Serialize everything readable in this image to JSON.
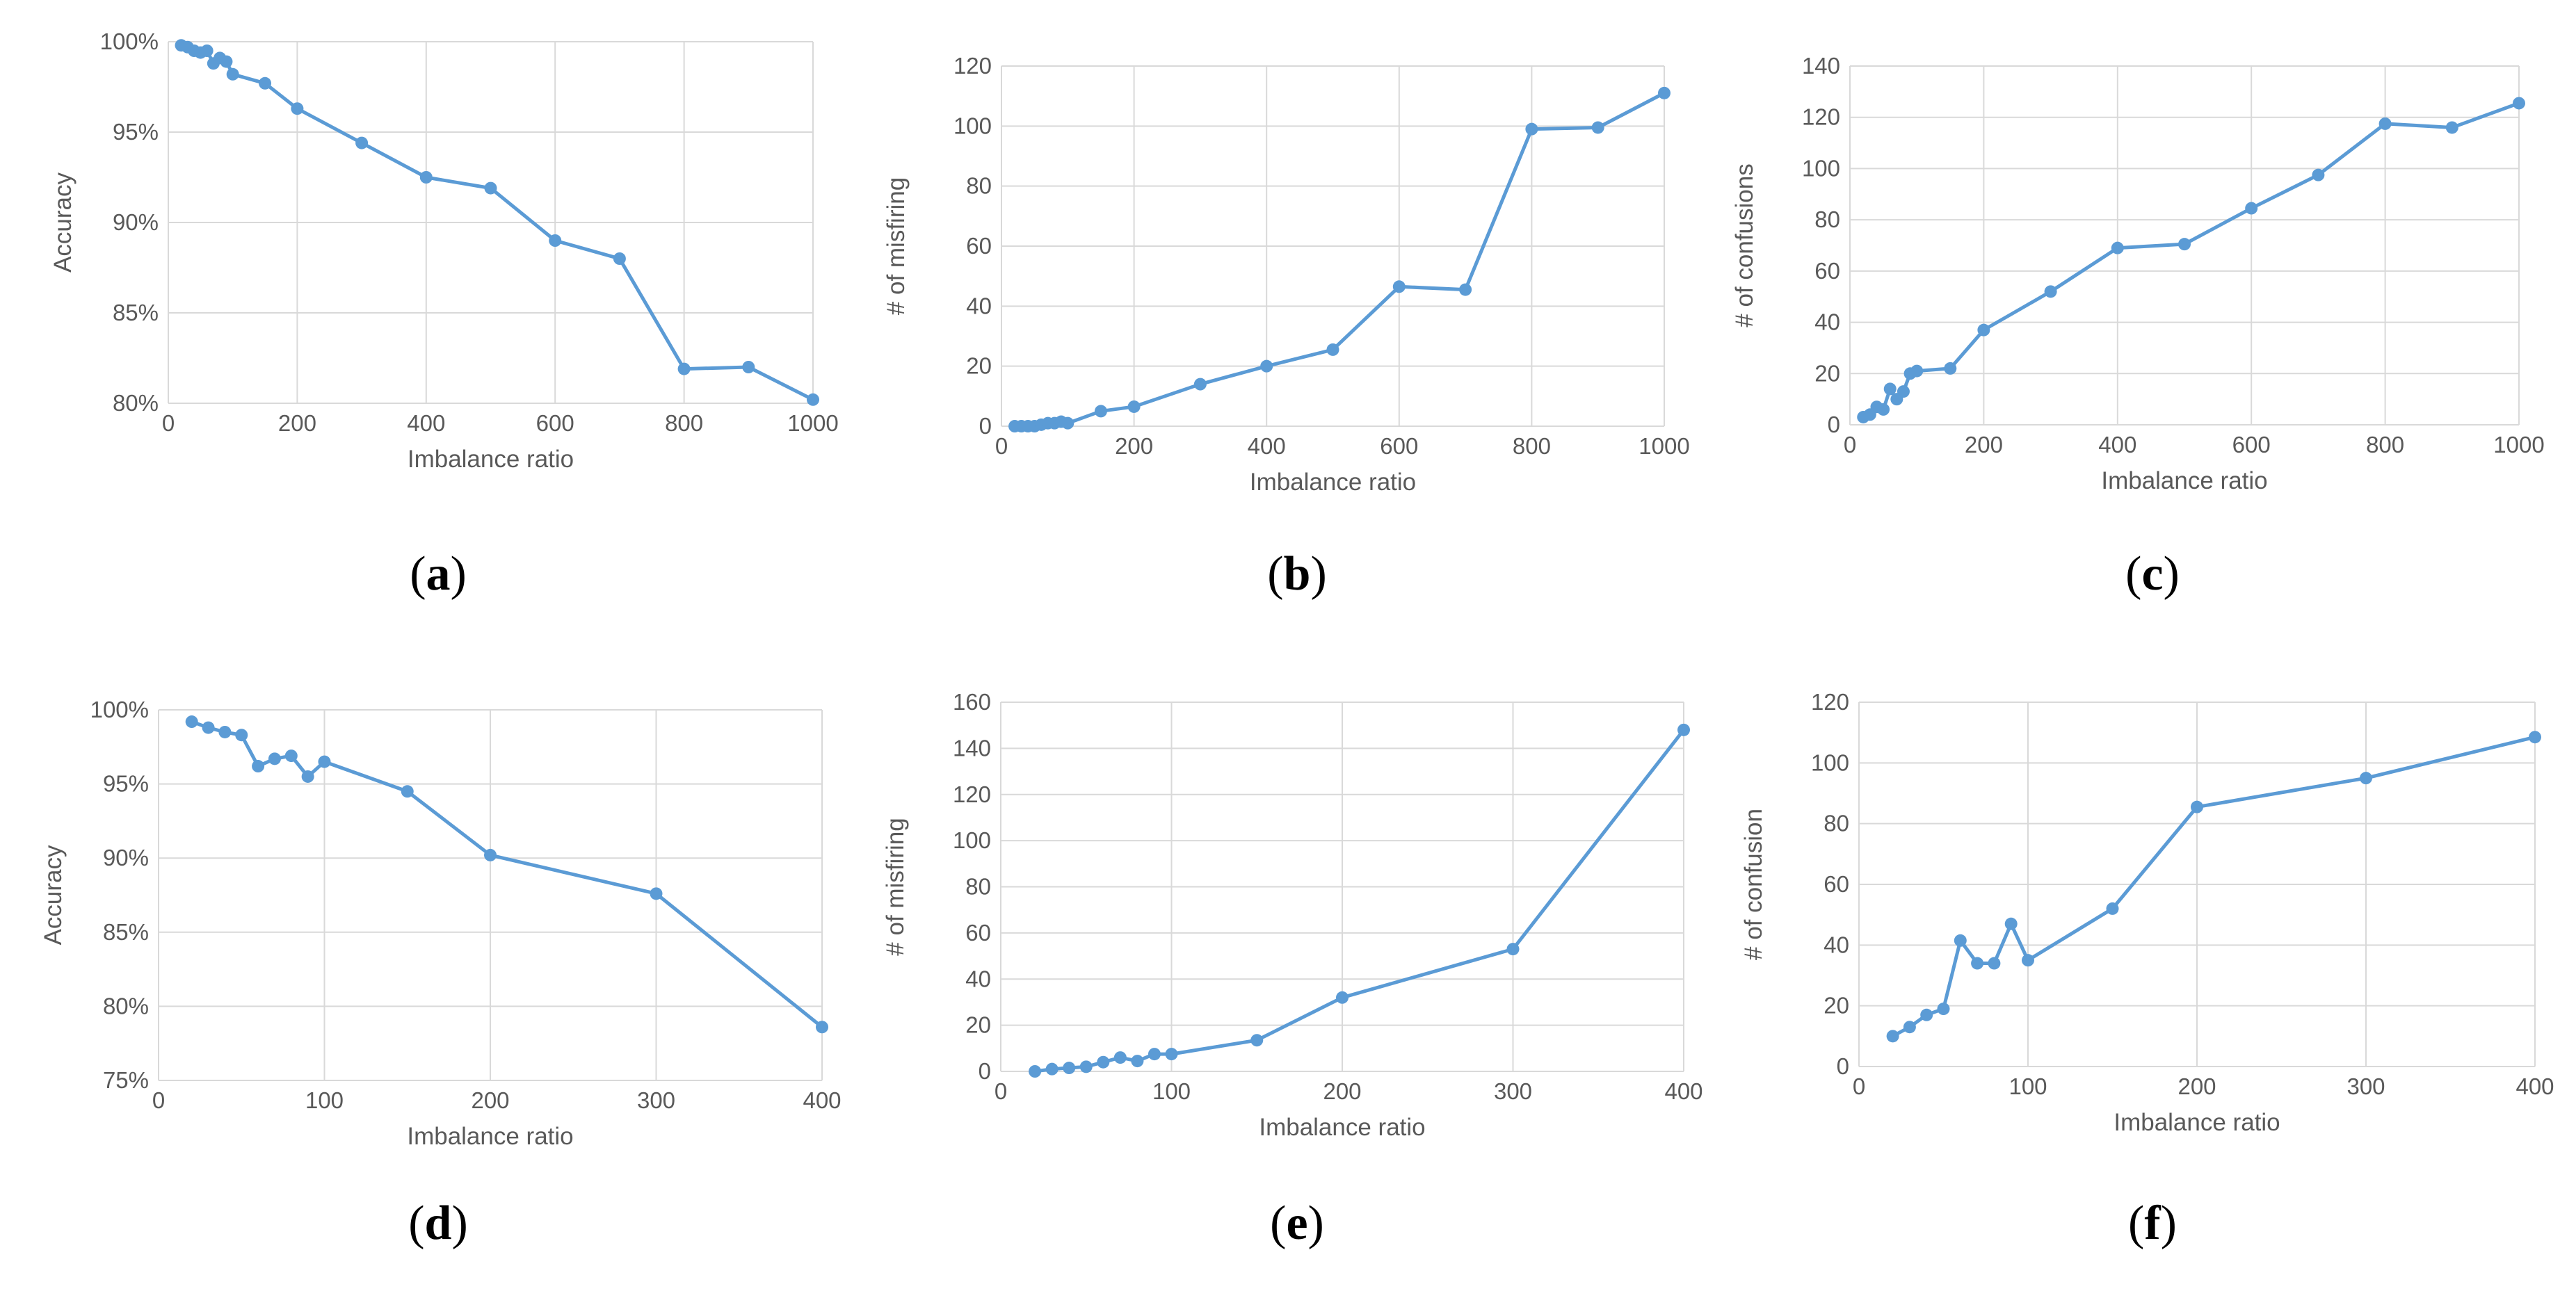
{
  "colors": {
    "line": "#5B9BD5",
    "grid": "#D9D9D9",
    "text": "#595959"
  },
  "chart_data": [
    {
      "type": "line",
      "x": [
        20,
        30,
        40,
        50,
        60,
        70,
        80,
        90,
        100,
        150,
        200,
        300,
        400,
        500,
        600,
        700,
        800,
        900,
        1000
      ],
      "series": [
        {
          "values": [
            99.8,
            99.7,
            99.5,
            99.4,
            99.5,
            98.8,
            99.1,
            98.9,
            98.2,
            97.7,
            96.3,
            94.4,
            92.5,
            91.9,
            89.0,
            88.0,
            81.9,
            82.0,
            80.2
          ]
        }
      ],
      "xlabel": "Imbalance ratio",
      "ylabel": "Accuracy",
      "xlim": [
        0,
        1000
      ],
      "ylim": [
        80,
        100
      ],
      "xticks": [
        0,
        200,
        400,
        600,
        800,
        1000
      ],
      "yticks": [
        80,
        85,
        90,
        95,
        100
      ],
      "yticklabels": [
        "80%",
        "85%",
        "90%",
        "95%",
        "100%"
      ],
      "grid": true,
      "caption": {
        "open": "(",
        "letter": "a",
        "close": ")"
      }
    },
    {
      "type": "line",
      "x": [
        20,
        30,
        40,
        50,
        60,
        70,
        80,
        90,
        100,
        150,
        200,
        300,
        400,
        500,
        600,
        700,
        800,
        900,
        1000
      ],
      "series": [
        {
          "values": [
            0,
            0,
            0,
            0,
            0.5,
            1,
            1,
            1.5,
            1,
            5,
            6.5,
            14,
            20,
            25.5,
            46.5,
            45.5,
            99,
            99.5,
            111
          ]
        }
      ],
      "xlabel": "Imbalance ratio",
      "ylabel": "# of misfiring",
      "xlim": [
        0,
        1000
      ],
      "ylim": [
        0,
        120
      ],
      "xticks": [
        0,
        200,
        400,
        600,
        800,
        1000
      ],
      "yticks": [
        0,
        20,
        40,
        60,
        80,
        100,
        120
      ],
      "yticklabels": [
        "0",
        "20",
        "40",
        "60",
        "80",
        "100",
        "120"
      ],
      "grid": true,
      "caption": {
        "open": "(",
        "letter": "b",
        "close": ")"
      }
    },
    {
      "type": "line",
      "x": [
        20,
        30,
        40,
        50,
        60,
        70,
        80,
        90,
        100,
        150,
        200,
        300,
        400,
        500,
        600,
        700,
        800,
        900,
        1000
      ],
      "series": [
        {
          "values": [
            3,
            4,
            7,
            6,
            14,
            10,
            13,
            20,
            21,
            22,
            37,
            52,
            69,
            70.5,
            84.5,
            97.5,
            117.5,
            116,
            125.5
          ]
        }
      ],
      "xlabel": "Imbalance ratio",
      "ylabel": "# of confusions",
      "xlim": [
        0,
        1000
      ],
      "ylim": [
        0,
        140
      ],
      "xticks": [
        0,
        200,
        400,
        600,
        800,
        1000
      ],
      "yticks": [
        0,
        20,
        40,
        60,
        80,
        100,
        120,
        140
      ],
      "yticklabels": [
        "0",
        "20",
        "40",
        "60",
        "80",
        "100",
        "120",
        "140"
      ],
      "grid": true,
      "caption": {
        "open": "(",
        "letter": "c",
        "close": ")"
      }
    },
    {
      "type": "line",
      "x": [
        20,
        30,
        40,
        50,
        60,
        70,
        80,
        90,
        100,
        150,
        200,
        300,
        400
      ],
      "series": [
        {
          "values": [
            99.2,
            98.8,
            98.5,
            98.3,
            96.2,
            96.7,
            96.9,
            95.5,
            96.5,
            94.5,
            90.2,
            87.6,
            78.6
          ]
        }
      ],
      "xlabel": "Imbalance ratio",
      "ylabel": "Accuracy",
      "xlim": [
        0,
        400
      ],
      "ylim": [
        75,
        100
      ],
      "xticks": [
        0,
        100,
        200,
        300,
        400
      ],
      "yticks": [
        75,
        80,
        85,
        90,
        95,
        100
      ],
      "yticklabels": [
        "75%",
        "80%",
        "85%",
        "90%",
        "95%",
        "100%"
      ],
      "grid": true,
      "caption": {
        "open": "(",
        "letter": "d",
        "close": ")"
      }
    },
    {
      "type": "line",
      "x": [
        20,
        30,
        40,
        50,
        60,
        70,
        80,
        90,
        100,
        150,
        200,
        300,
        400
      ],
      "series": [
        {
          "values": [
            0,
            1,
            1.5,
            2,
            4,
            6,
            4.5,
            7.5,
            7.5,
            13.5,
            32,
            53,
            148
          ]
        }
      ],
      "xlabel": "Imbalance ratio",
      "ylabel": "# of misfiring",
      "xlim": [
        0,
        400
      ],
      "ylim": [
        0,
        160
      ],
      "xticks": [
        0,
        100,
        200,
        300,
        400
      ],
      "yticks": [
        0,
        20,
        40,
        60,
        80,
        100,
        120,
        140,
        160
      ],
      "yticklabels": [
        "0",
        "20",
        "40",
        "60",
        "80",
        "100",
        "120",
        "140",
        "160"
      ],
      "grid": true,
      "caption": {
        "open": "(",
        "letter": "e",
        "close": ")"
      }
    },
    {
      "type": "line",
      "x": [
        20,
        30,
        40,
        50,
        60,
        70,
        80,
        90,
        100,
        150,
        200,
        300,
        400
      ],
      "series": [
        {
          "values": [
            10,
            13,
            17,
            19,
            41.5,
            34,
            34,
            47,
            35,
            52,
            85.5,
            95,
            108.5
          ]
        }
      ],
      "xlabel": "Imbalance ratio",
      "ylabel": "# of confusion",
      "xlim": [
        0,
        400
      ],
      "ylim": [
        0,
        120
      ],
      "xticks": [
        0,
        100,
        200,
        300,
        400
      ],
      "yticks": [
        0,
        20,
        40,
        60,
        80,
        100,
        120
      ],
      "yticklabels": [
        "0",
        "20",
        "40",
        "60",
        "80",
        "100",
        "120"
      ],
      "grid": true,
      "caption": {
        "open": "(",
        "letter": "f",
        "close": ")"
      }
    }
  ]
}
